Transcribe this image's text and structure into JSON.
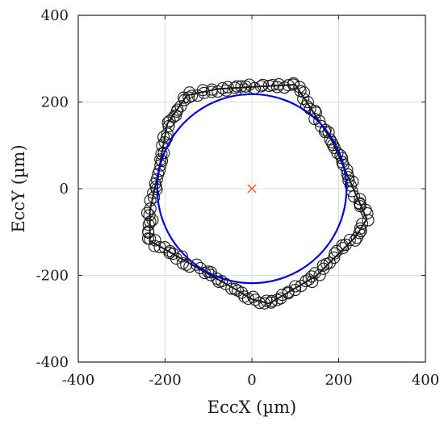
{
  "chart_data": {
    "type": "scatter",
    "xlabel": "EccX (µm)",
    "ylabel": "EccY (µm)",
    "xlim": [
      -400,
      400
    ],
    "ylim": [
      -400,
      400
    ],
    "x_ticks": [
      -400,
      -200,
      0,
      200,
      400
    ],
    "y_ticks": [
      -400,
      -200,
      0,
      200,
      400
    ],
    "x_tick_labels": [
      "-400",
      "-200",
      "0",
      "200",
      "400"
    ],
    "y_tick_labels": [
      "-400",
      "-200",
      "0",
      "200",
      "400"
    ],
    "grid": true,
    "colors": {
      "points": "#1a1a1a",
      "circle": "#0000dd",
      "center": "#ff5a1f",
      "grid": "#dcdcdc"
    },
    "trajectory_vertices": [
      [
        0,
        235
      ],
      [
        100,
        240
      ],
      [
        185,
        110
      ],
      [
        265,
        -70
      ],
      [
        240,
        -110
      ],
      [
        150,
        -200
      ],
      [
        40,
        -265
      ],
      [
        0,
        -255
      ],
      [
        -50,
        -225
      ],
      [
        -130,
        -180
      ],
      [
        -235,
        -120
      ],
      [
        -235,
        -50
      ],
      [
        -215,
        40
      ],
      [
        -195,
        150
      ],
      [
        -150,
        215
      ],
      [
        -80,
        230
      ]
    ],
    "fit_circle": {
      "center": [
        0,
        0
      ],
      "radius": 218
    },
    "center_marker": [
      0,
      0
    ]
  }
}
